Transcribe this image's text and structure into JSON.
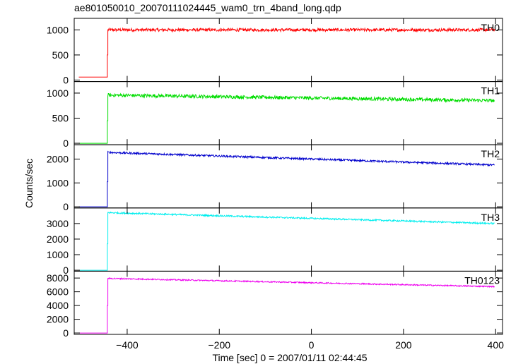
{
  "title": "ae801050010_20070111024445_wam0_trn_4band_long.qdp",
  "xlabel": "Time [sec] 0 = 2007/01/11 02:44:45",
  "ylabel": "Counts/sec",
  "chart_data": [
    {
      "type": "line",
      "name": "TH0",
      "color": "#ff0000",
      "xlim": [
        -515,
        415
      ],
      "ylim": [
        -30,
        1230
      ],
      "yticks": [
        0,
        500,
        1000
      ],
      "xticks": [
        -400,
        -200,
        0,
        200,
        400
      ],
      "x_range": [
        -505,
        398
      ],
      "trigger_time": -442,
      "pre_level": 60,
      "rise_level": 500,
      "start_level": 1000,
      "end_level": 1000,
      "noise": 30
    },
    {
      "type": "line",
      "name": "TH1",
      "color": "#00dd00",
      "xlim": [
        -515,
        415
      ],
      "ylim": [
        -30,
        1230
      ],
      "yticks": [
        0,
        500,
        1000
      ],
      "xticks": [
        -400,
        -200,
        0,
        200,
        400
      ],
      "x_range": [
        -505,
        398
      ],
      "trigger_time": -442,
      "pre_level": 0,
      "rise_level": 450,
      "start_level": 960,
      "end_level": 850,
      "noise": 35
    },
    {
      "type": "line",
      "name": "TH2",
      "color": "#0000cc",
      "xlim": [
        -515,
        415
      ],
      "ylim": [
        -50,
        2600
      ],
      "yticks": [
        0,
        1000,
        2000
      ],
      "xticks": [
        -400,
        -200,
        0,
        200,
        400
      ],
      "x_range": [
        -505,
        398
      ],
      "trigger_time": -442,
      "pre_level": 0,
      "rise_level": 1050,
      "start_level": 2280,
      "end_level": 1750,
      "noise": 40
    },
    {
      "type": "line",
      "name": "TH3",
      "color": "#00eeee",
      "xlim": [
        -515,
        415
      ],
      "ylim": [
        -60,
        4000
      ],
      "yticks": [
        0,
        1000,
        2000,
        3000
      ],
      "xticks": [
        -400,
        -200,
        0,
        200,
        400
      ],
      "x_range": [
        -505,
        398
      ],
      "trigger_time": -442,
      "pre_level": 0,
      "rise_level": 1700,
      "start_level": 3700,
      "end_level": 3000,
      "noise": 50
    },
    {
      "type": "line",
      "name": "TH0123",
      "color": "#ee00ee",
      "xlim": [
        -515,
        415
      ],
      "ylim": [
        -200,
        9000
      ],
      "yticks": [
        0,
        2000,
        4000,
        6000,
        8000
      ],
      "xticks": [
        -400,
        -200,
        0,
        200,
        400
      ],
      "x_range": [
        -505,
        398
      ],
      "trigger_time": -442,
      "pre_level": 0,
      "rise_level": 4000,
      "start_level": 7950,
      "end_level": 6750,
      "noise": 90
    }
  ]
}
